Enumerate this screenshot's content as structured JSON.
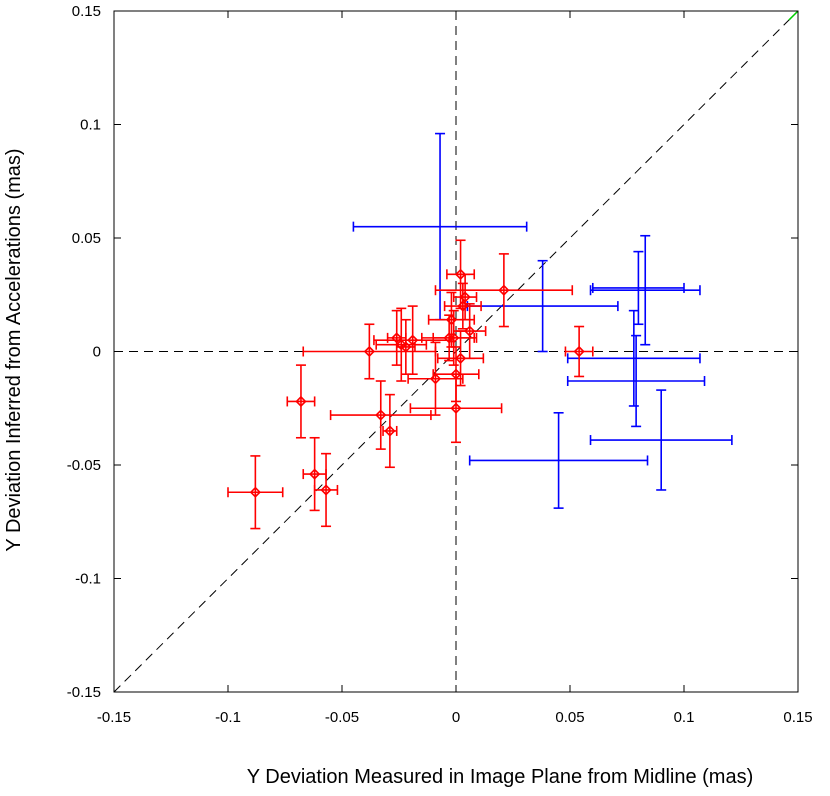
{
  "chart_data": {
    "type": "scatter",
    "title": "",
    "xlabel": "Y Deviation Measured in Image Plane from Midline (mas)",
    "ylabel": "Y Deviation Inferred from Accelerations (mas)",
    "xlim": [
      -0.15,
      0.15
    ],
    "ylim": [
      -0.15,
      0.15
    ],
    "x_ticks": [
      -0.15,
      -0.1,
      -0.05,
      0,
      0.05,
      0.1,
      0.15
    ],
    "y_ticks": [
      -0.15,
      -0.1,
      -0.05,
      0,
      0.05,
      0.1,
      0.15
    ],
    "x_tick_labels": [
      "-0.15",
      "-0.1",
      "-0.05",
      "0",
      "0.05",
      "0.1",
      "0.15"
    ],
    "y_tick_labels": [
      "-0.15",
      "-0.1",
      "-0.05",
      "0",
      "0.05",
      "0.1",
      "0.15"
    ],
    "grid": false,
    "reference_lines": [
      "y = x (dashed)",
      "x = 0 (dashed)",
      "y = 0 (dashed)"
    ],
    "colors": {
      "red_series": "#ff0000",
      "blue_series": "#0000ff",
      "diagonal_end": "#00cc00",
      "axes": "#000000"
    },
    "series": [
      {
        "color": "red",
        "marker": "diamond",
        "points": [
          {
            "x": -0.088,
            "y": -0.062,
            "xerr": 0.012,
            "yerr": 0.016
          },
          {
            "x": -0.068,
            "y": -0.022,
            "xerr": 0.006,
            "yerr": 0.016
          },
          {
            "x": -0.062,
            "y": -0.054,
            "xerr": 0.005,
            "yerr": 0.016
          },
          {
            "x": -0.057,
            "y": -0.061,
            "xerr": 0.005,
            "yerr": 0.016
          },
          {
            "x": -0.038,
            "y": 0.0,
            "xerr": 0.029,
            "yerr": 0.012
          },
          {
            "x": -0.033,
            "y": -0.028,
            "xerr": 0.022,
            "yerr": 0.015
          },
          {
            "x": -0.029,
            "y": -0.035,
            "xerr": 0.003,
            "yerr": 0.016
          },
          {
            "x": -0.026,
            "y": 0.006,
            "xerr": 0.004,
            "yerr": 0.012
          },
          {
            "x": -0.024,
            "y": 0.003,
            "xerr": 0.011,
            "yerr": 0.016
          },
          {
            "x": -0.022,
            "y": 0.002,
            "xerr": 0.004,
            "yerr": 0.012
          },
          {
            "x": -0.019,
            "y": 0.005,
            "xerr": 0.017,
            "yerr": 0.015
          },
          {
            "x": -0.009,
            "y": -0.012,
            "xerr": 0.012,
            "yerr": 0.016
          },
          {
            "x": -0.003,
            "y": 0.006,
            "xerr": 0.012,
            "yerr": 0.01
          },
          {
            "x": -0.002,
            "y": 0.014,
            "xerr": 0.01,
            "yerr": 0.012
          },
          {
            "x": -0.001,
            "y": 0.006,
            "xerr": 0.009,
            "yerr": 0.012
          },
          {
            "x": 0.0,
            "y": -0.01,
            "xerr": 0.01,
            "yerr": 0.012
          },
          {
            "x": 0.0,
            "y": -0.025,
            "xerr": 0.02,
            "yerr": 0.015
          },
          {
            "x": 0.002,
            "y": 0.034,
            "xerr": 0.006,
            "yerr": 0.015
          },
          {
            "x": 0.002,
            "y": -0.003,
            "xerr": 0.01,
            "yerr": 0.012
          },
          {
            "x": 0.003,
            "y": 0.02,
            "xerr": 0.008,
            "yerr": 0.01
          },
          {
            "x": 0.004,
            "y": 0.024,
            "xerr": 0.005,
            "yerr": 0.01
          },
          {
            "x": 0.006,
            "y": 0.009,
            "xerr": 0.007,
            "yerr": 0.012
          },
          {
            "x": 0.021,
            "y": 0.027,
            "xerr": 0.03,
            "yerr": 0.016
          },
          {
            "x": 0.054,
            "y": 0.0,
            "xerr": 0.006,
            "yerr": 0.011
          }
        ]
      },
      {
        "color": "blue",
        "marker": "none",
        "points": [
          {
            "x": -0.007,
            "y": 0.055,
            "xerr": 0.038,
            "yerr": 0.041
          },
          {
            "x": 0.038,
            "y": 0.02,
            "xerr": 0.033,
            "yerr": 0.02
          },
          {
            "x": 0.045,
            "y": -0.048,
            "xerr": 0.039,
            "yerr": 0.021
          },
          {
            "x": 0.078,
            "y": -0.003,
            "xerr": 0.029,
            "yerr": 0.021
          },
          {
            "x": 0.079,
            "y": -0.013,
            "xerr": 0.03,
            "yerr": 0.02
          },
          {
            "x": 0.08,
            "y": 0.028,
            "xerr": 0.02,
            "yerr": 0.016
          },
          {
            "x": 0.083,
            "y": 0.027,
            "xerr": 0.024,
            "yerr": 0.024
          },
          {
            "x": 0.09,
            "y": -0.039,
            "xerr": 0.031,
            "yerr": 0.022
          }
        ]
      }
    ]
  }
}
